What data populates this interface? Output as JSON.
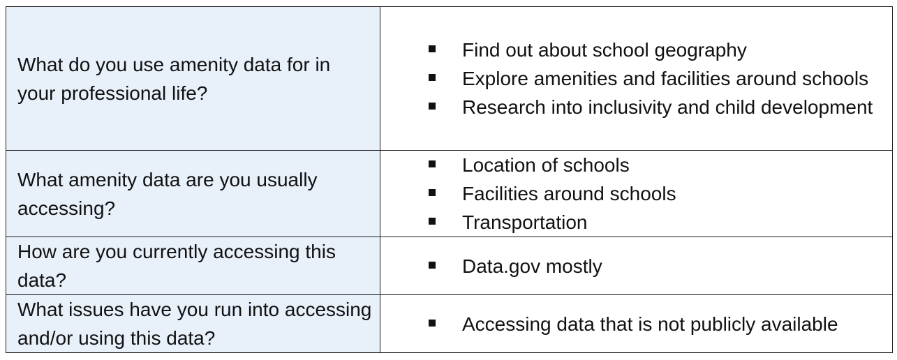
{
  "table": {
    "rows": [
      {
        "question": "What do you use amenity data for in your professional life?",
        "answers": [
          "Find out about school geography",
          "Explore amenities and facilities around schools",
          "Research into inclusivity and child development"
        ]
      },
      {
        "question": "What amenity data are you usually accessing?",
        "answers": [
          "Location of schools",
          "Facilities around schools",
          "Transportation"
        ]
      },
      {
        "question": "How are you currently accessing this data?",
        "answers": [
          "Data.gov mostly"
        ]
      },
      {
        "question": "What issues have you run into accessing and/or using this data?",
        "answers": [
          "Accessing data that is not publicly available"
        ]
      }
    ]
  },
  "colors": {
    "question_cell_bg": "#e8f0fa",
    "border": "#1a1a1a",
    "text": "#111111"
  },
  "icons": {
    "bullet": "square-bullet-icon"
  }
}
